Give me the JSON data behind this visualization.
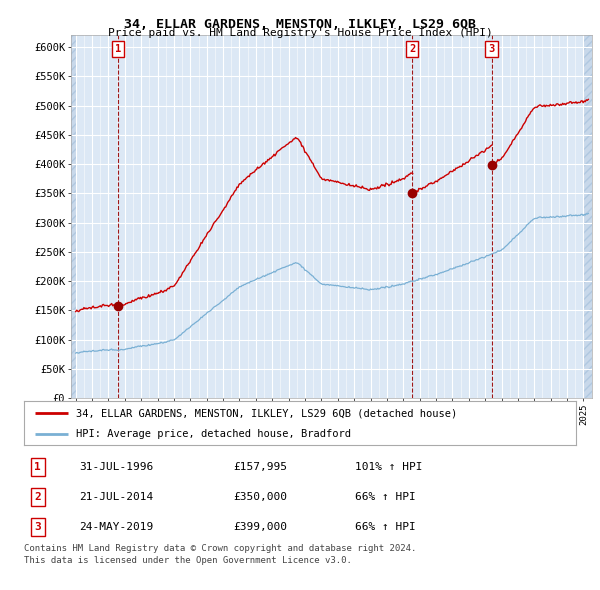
{
  "title1": "34, ELLAR GARDENS, MENSTON, ILKLEY, LS29 6QB",
  "title2": "Price paid vs. HM Land Registry's House Price Index (HPI)",
  "ylabel_ticks": [
    "£0",
    "£50K",
    "£100K",
    "£150K",
    "£200K",
    "£250K",
    "£300K",
    "£350K",
    "£400K",
    "£450K",
    "£500K",
    "£550K",
    "£600K"
  ],
  "ytick_values": [
    0,
    50000,
    100000,
    150000,
    200000,
    250000,
    300000,
    350000,
    400000,
    450000,
    500000,
    550000,
    600000
  ],
  "ylim": [
    0,
    620000
  ],
  "xlim_start": 1993.7,
  "xlim_end": 2025.5,
  "sale_dates": [
    1996.58,
    2014.55,
    2019.39
  ],
  "sale_prices": [
    157995,
    350000,
    399000
  ],
  "sale_labels": [
    "1",
    "2",
    "3"
  ],
  "sale_date_strs": [
    "31-JUL-1996",
    "21-JUL-2014",
    "24-MAY-2019"
  ],
  "sale_price_strs": [
    "£157,995",
    "£350,000",
    "£399,000"
  ],
  "sale_pct_strs": [
    "101% ↑ HPI",
    "66% ↑ HPI",
    "66% ↑ HPI"
  ],
  "legend_line1": "34, ELLAR GARDENS, MENSTON, ILKLEY, LS29 6QB (detached house)",
  "legend_line2": "HPI: Average price, detached house, Bradford",
  "footer1": "Contains HM Land Registry data © Crown copyright and database right 2024.",
  "footer2": "This data is licensed under the Open Government Licence v3.0.",
  "price_line_color": "#cc0000",
  "hpi_line_color": "#7ab0d4",
  "sale_marker_color": "#990000",
  "sale_label_color": "#cc0000",
  "box_border_color": "#cc0000",
  "bg_color": "#dce8f5",
  "hatch_color": "#c8d8ea"
}
